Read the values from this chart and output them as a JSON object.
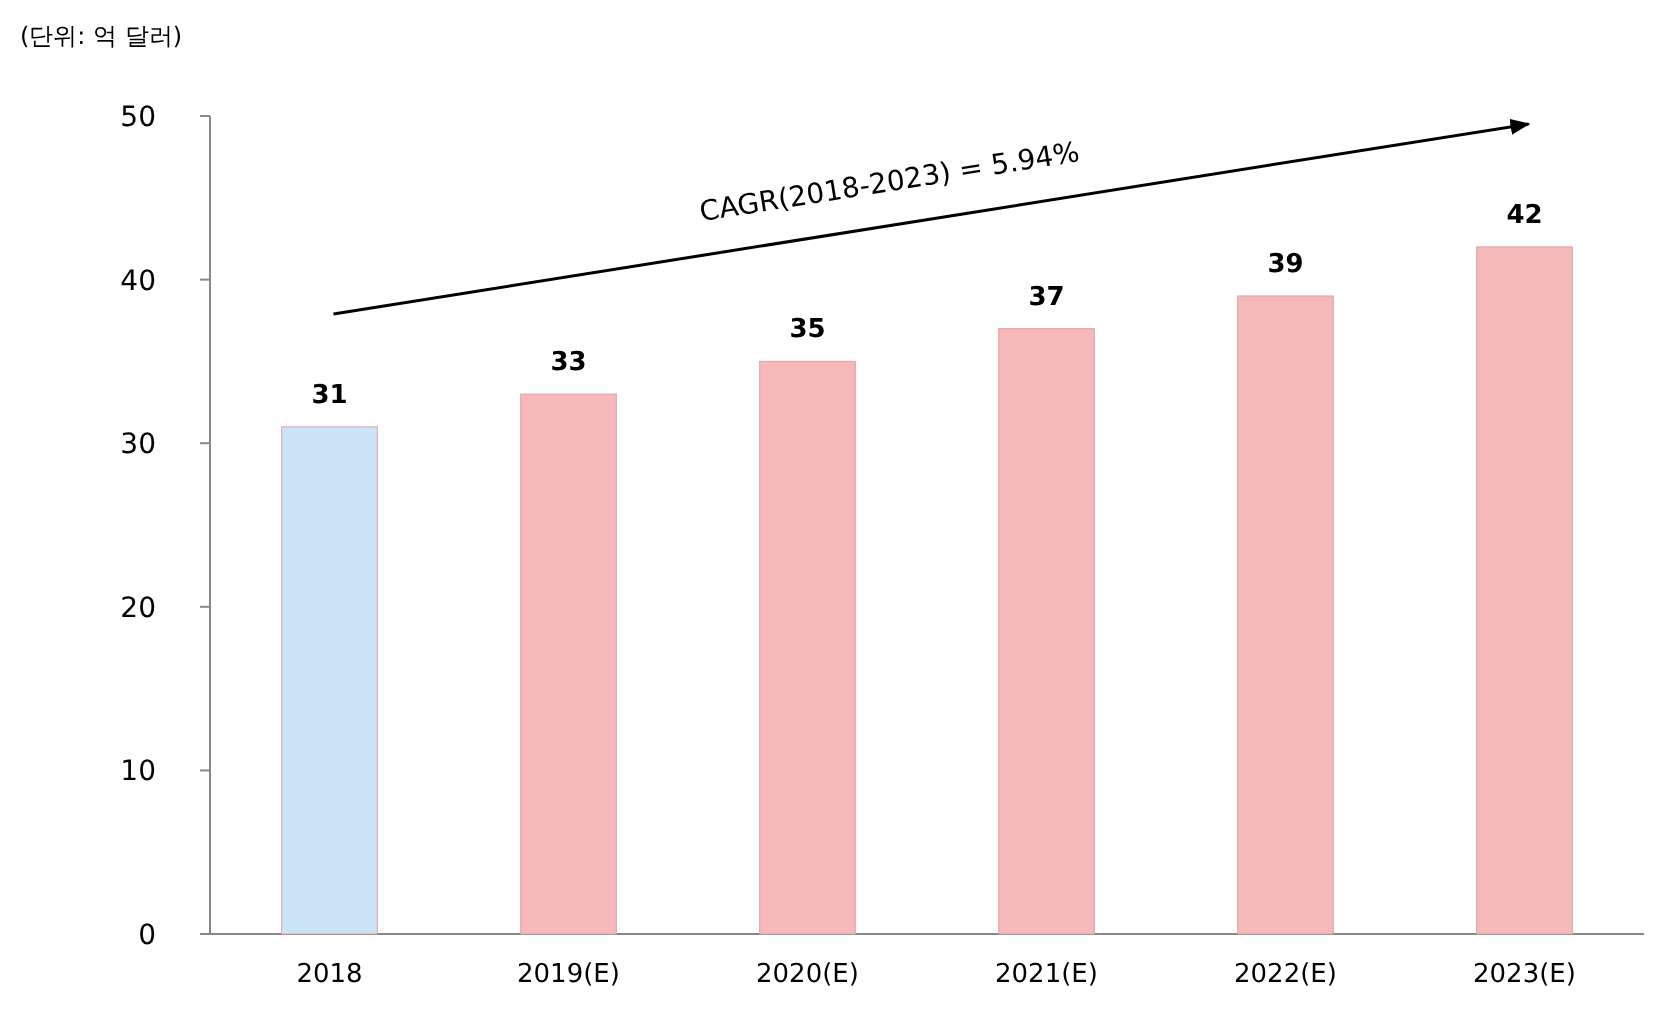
{
  "chart_data": {
    "type": "bar",
    "ylabel": "(단위: 억 달러)",
    "categories": [
      "2018",
      "2019(E)",
      "2020(E)",
      "2021(E)",
      "2022(E)",
      "2023(E)"
    ],
    "values": [
      31,
      33,
      35,
      37,
      39,
      42
    ],
    "colors": [
      "#cce4f8",
      "#f5b9b9",
      "#f5b9b9",
      "#f5b9b9",
      "#f5b9b9",
      "#f5b9b9"
    ],
    "ylim": [
      0,
      50
    ],
    "yticks": [
      0,
      10,
      20,
      30,
      40,
      50
    ],
    "grid": false,
    "data_labels": true,
    "annotations": [
      "CAGR(2018-2023) = 5.94%"
    ]
  }
}
